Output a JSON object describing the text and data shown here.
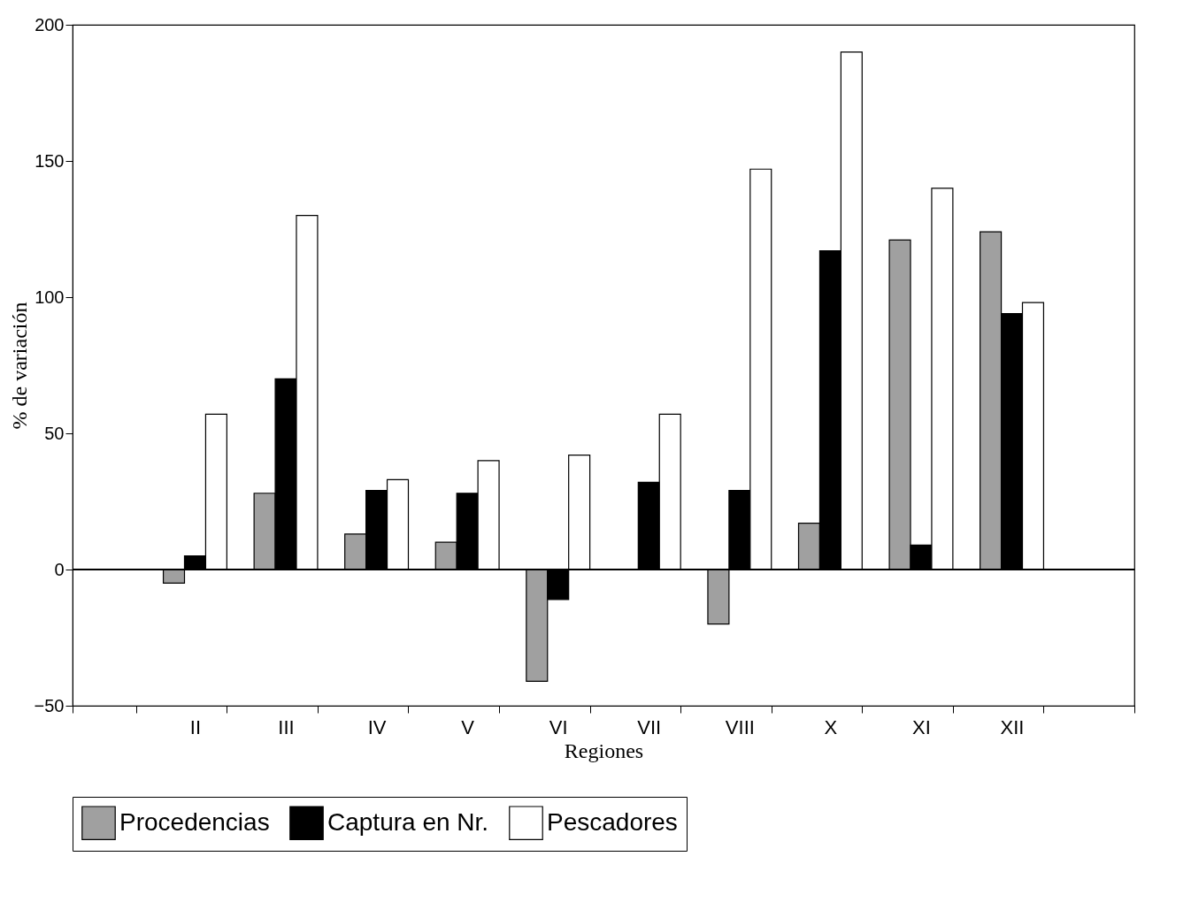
{
  "chart_data": {
    "type": "bar",
    "xlabel": "Regiones",
    "ylabel": "% de variación",
    "categories": [
      null,
      "II",
      "III",
      "IV",
      "V",
      "VI",
      "VII",
      "VIII",
      "X",
      "XI",
      "XII",
      null
    ],
    "series": [
      {
        "name": "Procedencias",
        "color": "#a0a0a0",
        "values": [
          null,
          -5,
          28,
          13,
          10,
          -41,
          null,
          -20,
          17,
          121,
          124,
          null
        ]
      },
      {
        "name": "Captura en Nr.",
        "color": "#000000",
        "values": [
          null,
          5,
          70,
          29,
          28,
          -11,
          32,
          29,
          117,
          9,
          94,
          null
        ]
      },
      {
        "name": "Pescadores",
        "color": "#ffffff",
        "values": [
          null,
          57,
          130,
          33,
          40,
          42,
          57,
          147,
          190,
          140,
          98,
          null
        ]
      }
    ],
    "ylim": [
      -50,
      200
    ],
    "yticks": [
      -50,
      0,
      50,
      100,
      150,
      200
    ],
    "grid": false,
    "legend": "bottom",
    "ref_lines": [
      {
        "axis": "y",
        "value": 0
      }
    ]
  }
}
